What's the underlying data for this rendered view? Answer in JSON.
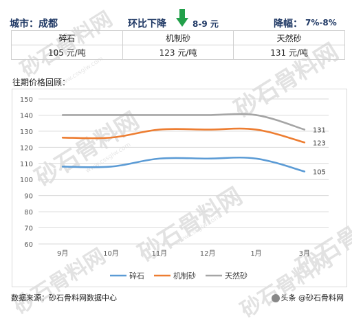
{
  "header": {
    "city_label": "城市：成都",
    "trend_label": "环比下降",
    "trend_value": "8-9 元",
    "decline_label": "降幅：",
    "decline_value": "7%-8%"
  },
  "price_table": {
    "products": [
      "碎石",
      "机制砂",
      "天然砂"
    ],
    "prices": [
      "105 元/吨",
      "123 元/吨",
      "131 元/吨"
    ]
  },
  "section_title": "往期价格回顾：",
  "chart_data": {
    "type": "line",
    "title": "",
    "xlabel": "",
    "ylabel": "",
    "categories": [
      "9月",
      "10月",
      "11月",
      "12月",
      "1月",
      "3月"
    ],
    "ylim": [
      60,
      150
    ],
    "yticks": [
      60,
      70,
      80,
      90,
      100,
      110,
      120,
      130,
      140,
      150
    ],
    "grid": true,
    "legend_position": "bottom",
    "series": [
      {
        "name": "碎石",
        "color": "#5b9bd5",
        "values": [
          108,
          108,
          113,
          113,
          113,
          105
        ],
        "end_label": "105"
      },
      {
        "name": "机制砂",
        "color": "#ed7d31",
        "values": [
          126,
          126,
          131,
          131,
          131,
          123
        ],
        "end_label": "123"
      },
      {
        "name": "天然砂",
        "color": "#a5a5a5",
        "values": [
          140,
          140,
          140,
          140,
          140,
          131
        ],
        "end_label": "131"
      }
    ]
  },
  "footer": {
    "source": "数据来源：砂石骨料网数据中心",
    "brand": "头条 @砂石骨料网"
  },
  "watermark": {
    "text": "砂石骨料网",
    "url": "www.cssglw.com"
  },
  "colors": {
    "header_text": "#1f3864",
    "down_arrow": "#22a04a",
    "grid": "#d9d9d9"
  },
  "icons": [
    "down-arrow-icon",
    "brand-icon"
  ]
}
